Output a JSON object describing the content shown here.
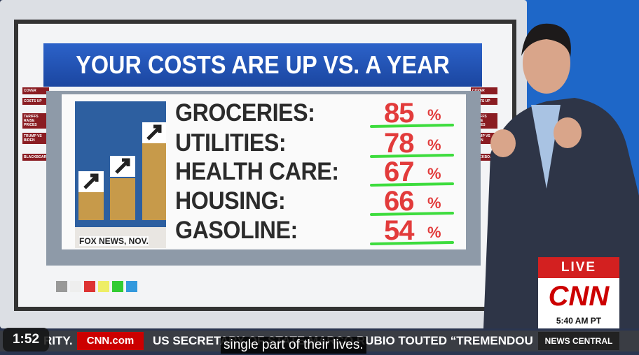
{
  "screen": {
    "title": "YOUR COSTS ARE UP VS. A YEAR AGO",
    "left_tabs": [
      "COVER",
      "COSTS UP",
      "TARIFFS RAISE PRICES",
      "TRUMP VS BIDEN",
      "BLACKBOARD"
    ],
    "right_tabs": [
      "COVER",
      "COSTS UP",
      "TARIFFS RAISE PRICES",
      "TRUMP VS BIDEN",
      "BLACKBOARD"
    ],
    "source": "FOX NEWS, NOV.",
    "rows": [
      {
        "label": "GROCERIES:",
        "value": "85",
        "unit": "%"
      },
      {
        "label": "UTILITIES:",
        "value": "78",
        "unit": "%"
      },
      {
        "label": "HEALTH CARE:",
        "value": "67",
        "unit": "%"
      },
      {
        "label": "HOUSING:",
        "value": "66",
        "unit": "%"
      },
      {
        "label": "GASOLINE:",
        "value": "54",
        "unit": "%"
      }
    ]
  },
  "bug": {
    "live": "LIVE",
    "network": "CNN",
    "time": "5:40 AM PT"
  },
  "ticker": {
    "left": "RITY.",
    "site": "CNN.com",
    "headline": "US SECRETARY OF STATE MARCO RUBIO TOUTED “TREMENDOU",
    "show": "NEWS CENTRAL"
  },
  "player": {
    "timestamp": "1:52",
    "caption": "single part of their lives."
  }
}
